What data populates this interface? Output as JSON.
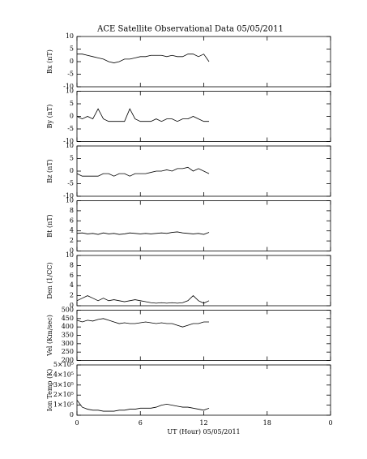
{
  "title": "ACE Satellite Observational Data   05/05/2011",
  "chart_data": [
    {
      "type": "line",
      "ylabel": "Bx (nT)",
      "xlim": [
        0,
        24
      ],
      "xticks": [
        0,
        6,
        12,
        18,
        {
          "value": 24,
          "label": "0"
        }
      ],
      "ylim": [
        -10,
        10
      ],
      "yticks": [
        -10,
        -5,
        0,
        5,
        10
      ],
      "color": "#000000",
      "x": [
        0,
        0.5,
        1,
        1.5,
        2,
        2.5,
        3,
        3.5,
        4,
        4.5,
        5,
        5.5,
        6,
        6.5,
        7,
        7.5,
        8,
        8.5,
        9,
        9.5,
        10,
        10.5,
        11,
        11.5,
        12,
        12.5
      ],
      "values": [
        3,
        3,
        2.5,
        2,
        1.5,
        1,
        0,
        -0.5,
        0,
        1,
        1,
        1.5,
        2,
        2,
        2.5,
        2.5,
        2.5,
        2,
        2.5,
        2,
        2,
        3,
        3,
        2,
        3,
        0
      ]
    },
    {
      "type": "line",
      "ylabel": "By (nT)",
      "xlim": [
        0,
        24
      ],
      "xticks": [
        0,
        6,
        12,
        18,
        {
          "value": 24,
          "label": "0"
        }
      ],
      "ylim": [
        -10,
        10
      ],
      "yticks": [
        -10,
        -5,
        0,
        5,
        10
      ],
      "color": "#000000",
      "x": [
        0,
        0.5,
        1,
        1.5,
        2,
        2.5,
        3,
        3.5,
        4,
        4.5,
        5,
        5.5,
        6,
        6.5,
        7,
        7.5,
        8,
        8.5,
        9,
        9.5,
        10,
        10.5,
        11,
        11.5,
        12,
        12.5
      ],
      "values": [
        0,
        -1,
        0,
        -1,
        3,
        -1,
        -2,
        -2,
        -2,
        -2,
        3,
        -1,
        -2,
        -2,
        -2,
        -1,
        -2,
        -1,
        -1,
        -2,
        -1,
        -1,
        0,
        -1,
        -2,
        -2
      ]
    },
    {
      "type": "line",
      "ylabel": "Bz (nT)",
      "xlim": [
        0,
        24
      ],
      "xticks": [
        0,
        6,
        12,
        18,
        {
          "value": 24,
          "label": "0"
        }
      ],
      "ylim": [
        -10,
        10
      ],
      "yticks": [
        -10,
        -5,
        0,
        5,
        10
      ],
      "color": "#000000",
      "x": [
        0,
        0.5,
        1,
        1.5,
        2,
        2.5,
        3,
        3.5,
        4,
        4.5,
        5,
        5.5,
        6,
        6.5,
        7,
        7.5,
        8,
        8.5,
        9,
        9.5,
        10,
        10.5,
        11,
        11.5,
        12,
        12.5
      ],
      "values": [
        -1,
        -2,
        -2,
        -2,
        -2,
        -1,
        -1,
        -2,
        -1,
        -1,
        -2,
        -1,
        -1,
        -1,
        -0.5,
        0,
        0,
        0.5,
        0,
        1,
        1,
        1.5,
        0,
        1,
        0,
        -1
      ]
    },
    {
      "type": "line",
      "ylabel": "Bt (nT)",
      "xlim": [
        0,
        24
      ],
      "xticks": [
        0,
        6,
        12,
        18,
        {
          "value": 24,
          "label": "0"
        }
      ],
      "ylim": [
        0,
        10
      ],
      "yticks": [
        0,
        2,
        4,
        6,
        8,
        10
      ],
      "color": "#000000",
      "x": [
        0,
        0.5,
        1,
        1.5,
        2,
        2.5,
        3,
        3.5,
        4,
        4.5,
        5,
        5.5,
        6,
        6.5,
        7,
        7.5,
        8,
        8.5,
        9,
        9.5,
        10,
        10.5,
        11,
        11.5,
        12,
        12.5
      ],
      "values": [
        3.5,
        3.6,
        3.4,
        3.5,
        3.3,
        3.6,
        3.4,
        3.5,
        3.3,
        3.4,
        3.6,
        3.5,
        3.4,
        3.5,
        3.4,
        3.5,
        3.6,
        3.5,
        3.7,
        3.8,
        3.6,
        3.5,
        3.4,
        3.5,
        3.3,
        3.7
      ]
    },
    {
      "type": "line",
      "ylabel": "Den (1/CC)",
      "xlim": [
        0,
        24
      ],
      "xticks": [
        0,
        6,
        12,
        18,
        {
          "value": 24,
          "label": "0"
        }
      ],
      "ylim": [
        0,
        10
      ],
      "yticks": [
        0,
        2,
        4,
        6,
        8,
        10
      ],
      "color": "#000000",
      "x": [
        0,
        0.5,
        1,
        1.5,
        2,
        2.5,
        3,
        3.5,
        4,
        4.5,
        5,
        5.5,
        6,
        6.5,
        7,
        7.5,
        8,
        8.5,
        9,
        9.5,
        10,
        10.5,
        11,
        11.5,
        12,
        12.5
      ],
      "values": [
        1,
        1.5,
        2,
        1.5,
        1,
        1.5,
        1,
        1.2,
        1,
        0.8,
        1,
        1.2,
        1,
        0.8,
        0.6,
        0.5,
        0.6,
        0.5,
        0.6,
        0.5,
        0.6,
        1,
        2,
        1,
        0.5,
        1
      ]
    },
    {
      "type": "line",
      "ylabel": "Vel (Km/sec)",
      "xlim": [
        0,
        24
      ],
      "xticks": [
        0,
        6,
        12,
        18,
        {
          "value": 24,
          "label": "0"
        }
      ],
      "ylim": [
        200,
        500
      ],
      "yticks": [
        200,
        250,
        300,
        350,
        400,
        450,
        500
      ],
      "color": "#000000",
      "x": [
        0,
        0.5,
        1,
        1.5,
        2,
        2.5,
        3,
        3.5,
        4,
        4.5,
        5,
        5.5,
        6,
        6.5,
        7,
        7.5,
        8,
        8.5,
        9,
        9.5,
        10,
        10.5,
        11,
        11.5,
        12,
        12.5
      ],
      "values": [
        440,
        430,
        440,
        435,
        445,
        450,
        440,
        430,
        420,
        425,
        420,
        420,
        425,
        430,
        425,
        420,
        425,
        420,
        420,
        410,
        400,
        410,
        420,
        420,
        430,
        430
      ]
    },
    {
      "type": "line",
      "ylabel": "Ion Temp (K)",
      "xlabel": "UT (Hour)  05/05/2011",
      "xlim": [
        0,
        24
      ],
      "xticks": [
        0,
        6,
        12,
        18,
        {
          "value": 24,
          "label": "0"
        }
      ],
      "ylim": [
        0,
        500000
      ],
      "yticks": [
        0,
        {
          "value": 100000,
          "label": "1×10⁵"
        },
        {
          "value": 200000,
          "label": "2×10⁵"
        },
        {
          "value": 300000,
          "label": "3×10⁵"
        },
        {
          "value": 400000,
          "label": "4×10⁵"
        },
        {
          "value": 500000,
          "label": "5×10⁵"
        }
      ],
      "color": "#000000",
      "x": [
        0,
        0.5,
        1,
        1.5,
        2,
        2.5,
        3,
        3.5,
        4,
        4.5,
        5,
        5.5,
        6,
        6.5,
        7,
        7.5,
        8,
        8.5,
        9,
        9.5,
        10,
        10.5,
        11,
        11.5,
        12,
        12.5
      ],
      "values": [
        150000,
        80000,
        60000,
        50000,
        50000,
        40000,
        40000,
        40000,
        50000,
        50000,
        60000,
        60000,
        70000,
        70000,
        70000,
        80000,
        100000,
        110000,
        100000,
        90000,
        80000,
        80000,
        70000,
        60000,
        50000,
        70000
      ]
    }
  ]
}
